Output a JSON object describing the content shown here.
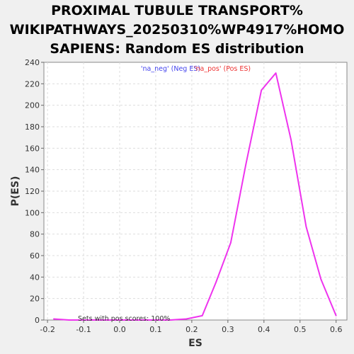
{
  "chart_data": {
    "type": "line",
    "title": [
      "PROXIMAL TUBULE TRANSPORT%",
      "WIKIPATHWAYS_20250310%WP4917%HOMO",
      "SAPIENS: Random ES distribution"
    ],
    "xlabel": "ES",
    "ylabel": "P(ES)",
    "xlim": [
      -0.21,
      0.63
    ],
    "ylim": [
      0,
      240
    ],
    "x_ticks": [
      "-0.2",
      "-0.1",
      "0.0",
      "0.1",
      "0.2",
      "0.3",
      "0.4",
      "0.5",
      "0.6"
    ],
    "y_ticks": [
      "0",
      "20",
      "40",
      "60",
      "80",
      "100",
      "120",
      "140",
      "160",
      "180",
      "200",
      "220",
      "240"
    ],
    "grid": true,
    "legend": {
      "placement": "top-center",
      "entries": [
        {
          "text": "'na_neg' (Neg ES)",
          "color": "#4444ee"
        },
        {
          "text": "'na_pos' (Pos ES)",
          "color": "#ee3333"
        }
      ]
    },
    "annotation": "Sets with pos scores: 100%",
    "series": [
      {
        "color": "#ee33ee",
        "x": [
          -0.183,
          -0.14,
          -0.1,
          -0.06,
          -0.02,
          0.02,
          0.06,
          0.1,
          0.14,
          0.185,
          0.229,
          0.267,
          0.308,
          0.35,
          0.393,
          0.433,
          0.475,
          0.517,
          0.558,
          0.6
        ],
        "y": [
          1,
          0,
          0,
          0,
          0,
          0,
          0,
          0,
          0,
          1,
          4,
          35,
          72,
          145,
          214,
          230,
          168,
          87,
          38,
          4
        ]
      }
    ]
  }
}
